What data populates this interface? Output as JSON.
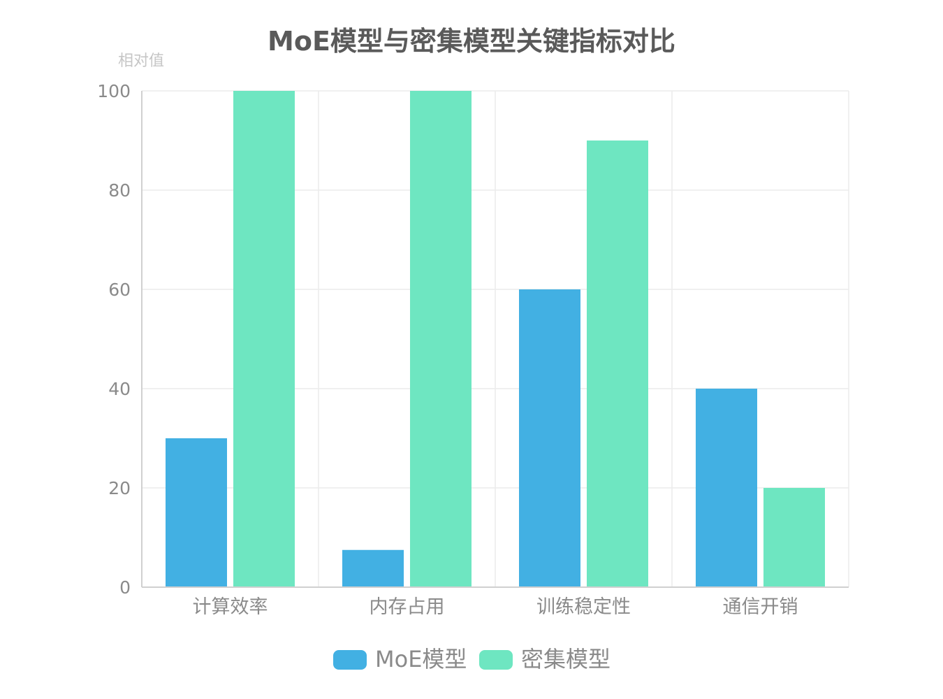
{
  "chart_data": {
    "type": "bar",
    "title": "MoE模型与密集模型关键指标对比",
    "ylabel": "相对值",
    "xlabel": "",
    "ylim": [
      0,
      100
    ],
    "yticks": [
      0,
      20,
      40,
      60,
      80,
      100
    ],
    "categories": [
      "计算效率",
      "内存占用",
      "训练稳定性",
      "通信开销"
    ],
    "series": [
      {
        "name": "MoE模型",
        "values": [
          30,
          7.5,
          60,
          40
        ],
        "color": "#42b0e3"
      },
      {
        "name": "密集模型",
        "values": [
          100,
          100,
          90,
          20
        ],
        "color": "#6ee6c1"
      }
    ],
    "grid": true,
    "legend": "bottom-center"
  }
}
